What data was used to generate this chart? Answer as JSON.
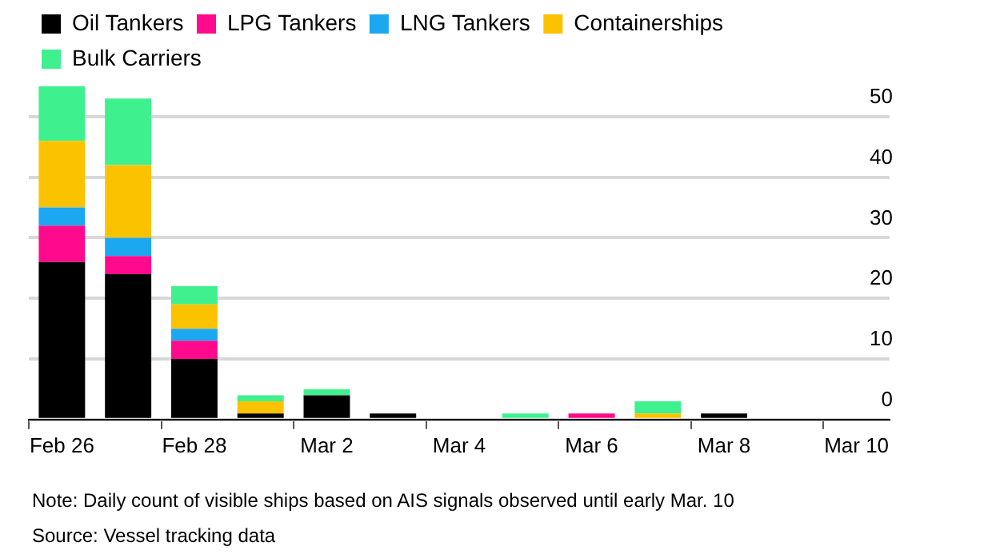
{
  "chart_data": {
    "type": "bar",
    "stacked": true,
    "legend": "top left",
    "grid": "y",
    "categories": [
      "Feb 26",
      null,
      "Feb 28",
      null,
      "Mar 2",
      null,
      "Mar 4",
      null,
      "Mar 6",
      null,
      "Mar 8",
      null,
      "Mar 10"
    ],
    "series": [
      {
        "name": "Oil Tankers",
        "color": "#000000",
        "values": [
          26,
          24,
          10,
          1,
          4,
          1,
          0,
          0,
          0,
          0,
          1,
          0,
          0
        ]
      },
      {
        "name": "LPG Tankers",
        "color": "#ff0a8c",
        "values": [
          6,
          3,
          3,
          0,
          0,
          0,
          0,
          0,
          1,
          0,
          0,
          0,
          0
        ]
      },
      {
        "name": "LNG Tankers",
        "color": "#1ba8f0",
        "values": [
          3,
          3,
          2,
          0,
          0,
          0,
          0,
          0,
          0,
          0,
          0,
          0,
          0
        ]
      },
      {
        "name": "Containerships",
        "color": "#fbc200",
        "values": [
          11,
          12,
          4,
          2,
          0,
          0,
          0,
          0,
          0,
          1,
          0,
          0,
          0
        ]
      },
      {
        "name": "Bulk Carriers",
        "color": "#3ff08f",
        "values": [
          9,
          11,
          3,
          1,
          1,
          0,
          0,
          1,
          0,
          2,
          0,
          0,
          0
        ]
      }
    ],
    "ylim": [
      0,
      55
    ],
    "yticks": [
      0,
      10,
      20,
      30,
      40,
      50
    ],
    "annotations": [
      "Note: Daily count of visible ships based on AIS signals observed until early Mar. 10",
      "Source: Vessel tracking data"
    ]
  }
}
